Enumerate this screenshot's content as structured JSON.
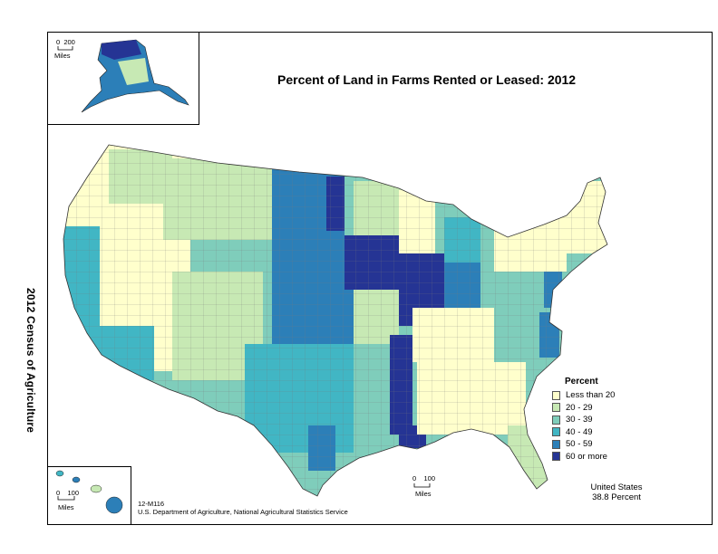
{
  "title": "Percent of Land in Farms Rented or Leased:  2012",
  "side_title": "2012 Census of Agriculture",
  "legend": {
    "title": "Percent",
    "items": [
      {
        "label": "Less than 20",
        "color": "#ffffcc"
      },
      {
        "label": "20 - 29",
        "color": "#c7e9b4"
      },
      {
        "label": "30 - 39",
        "color": "#7fcdbb"
      },
      {
        "label": "40 - 49",
        "color": "#41b6c4"
      },
      {
        "label": "50 - 59",
        "color": "#2c7fb8"
      },
      {
        "label": "60 or more",
        "color": "#253494"
      }
    ]
  },
  "scales": {
    "alaska": {
      "zero": "0",
      "max": "200",
      "unit": "Miles"
    },
    "hawaii": {
      "zero": "0",
      "max": "100",
      "unit": "Miles"
    },
    "conus": {
      "zero": "0",
      "max": "100",
      "unit": "Miles"
    }
  },
  "credit": {
    "map_id": "12-M116",
    "agency": "U.S. Department of Agriculture, National Agricultural Statistics Service"
  },
  "us_total": {
    "label": "United States",
    "value": "38.8 Percent"
  }
}
